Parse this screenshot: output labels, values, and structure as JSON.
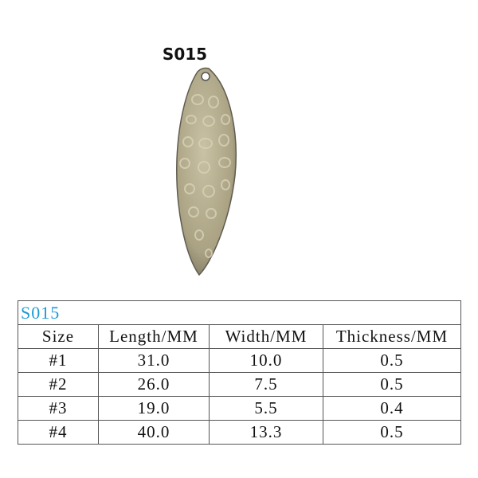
{
  "title": "S015",
  "table": {
    "caption": "S015",
    "header": [
      "Size",
      "Length/MM",
      "Width/MM",
      "Thickness/MM"
    ],
    "rows": [
      [
        "#1",
        "31.0",
        "10.0",
        "0.5"
      ],
      [
        "#2",
        "26.0",
        "7.5",
        "0.5"
      ],
      [
        "#3",
        "19.0",
        "5.5",
        "0.4"
      ],
      [
        "#4",
        "40.0",
        "13.3",
        "0.5"
      ]
    ]
  }
}
